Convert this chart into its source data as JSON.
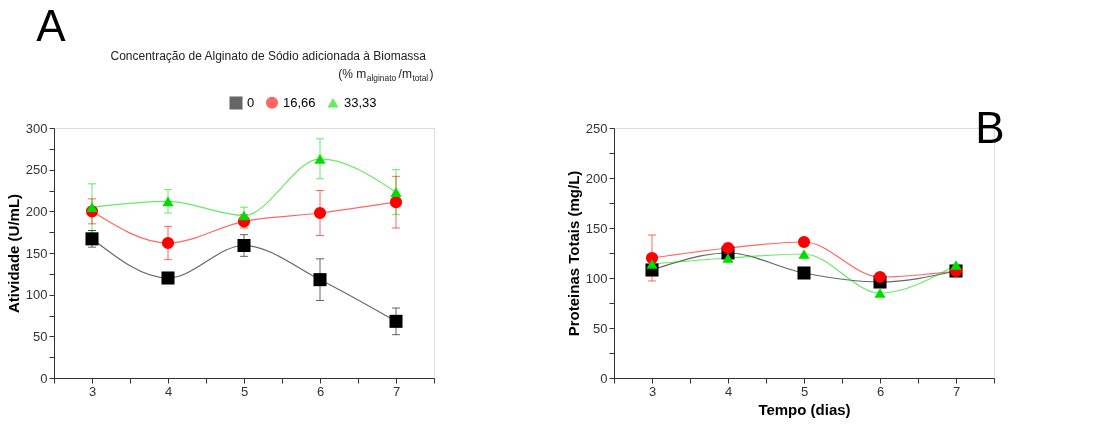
{
  "chart_data": [
    {
      "type": "line",
      "title": "A",
      "ylabel": "Atividade (U/mL)",
      "legend_title": "Concentração de Alginato de Sódio adicionada à Biomassa\n(% m$_{alginato}$/m$_{total}$)",
      "legend": "top right",
      "grid": false,
      "line_style": "solid",
      "x": [
        3,
        4,
        5,
        6,
        7
      ],
      "xlim": [
        2.5,
        7.5
      ],
      "xticks": [
        {
          "value": 2.5,
          "label": null
        },
        3,
        {
          "value": 3.5,
          "label": null
        },
        4,
        {
          "value": 4.5,
          "label": null
        },
        5,
        {
          "value": 5.5,
          "label": null
        },
        6,
        {
          "value": 6.5,
          "label": null
        },
        7,
        {
          "value": 7.5,
          "label": null
        }
      ],
      "ylim": [
        0,
        300
      ],
      "yticks": [
        0,
        {
          "value": 25,
          "label": null
        },
        50,
        {
          "value": 75,
          "label": null
        },
        100,
        {
          "value": 125,
          "label": null
        },
        150,
        {
          "value": 175,
          "label": null
        },
        200,
        {
          "value": 225,
          "label": null
        },
        250,
        {
          "value": 275,
          "label": null
        },
        300
      ],
      "series": [
        {
          "name": "0",
          "color": "#000000",
          "marker": "square",
          "values": [
            167,
            120,
            159,
            118,
            68
          ],
          "errors": [
            10,
            3,
            13,
            25,
            16
          ]
        },
        {
          "name": "16,66",
          "color": "#ff0000",
          "marker": "circle",
          "values": [
            200,
            162,
            188,
            198,
            211
          ],
          "errors": [
            15,
            20,
            8,
            27,
            31
          ]
        },
        {
          "name": "33,33",
          "color": "#00dd00",
          "marker": "triangle",
          "values": [
            205,
            212,
            195,
            263,
            223
          ],
          "errors": [
            28,
            14,
            10,
            24,
            27
          ]
        }
      ]
    },
    {
      "type": "line",
      "title": "B",
      "xlabel": "Tempo (dias)",
      "ylabel": "Proteinas Totais (mg/L)",
      "grid": false,
      "line_style": "solid",
      "x": [
        3,
        4,
        5,
        6,
        7
      ],
      "xlim": [
        2.5,
        7.5
      ],
      "xticks": [
        {
          "value": 2.5,
          "label": null
        },
        3,
        {
          "value": 3.5,
          "label": null
        },
        4,
        {
          "value": 4.5,
          "label": null
        },
        5,
        {
          "value": 5.5,
          "label": null
        },
        6,
        {
          "value": 6.5,
          "label": null
        },
        7,
        {
          "value": 7.5,
          "label": null
        }
      ],
      "ylim": [
        0,
        250
      ],
      "yticks": [
        0,
        {
          "value": 25,
          "label": null
        },
        50,
        {
          "value": 75,
          "label": null
        },
        100,
        {
          "value": 125,
          "label": null
        },
        150,
        {
          "value": 175,
          "label": null
        },
        200,
        {
          "value": 225,
          "label": null
        },
        250
      ],
      "series": [
        {
          "name": "0",
          "color": "#000000",
          "marker": "square",
          "values": [
            108,
            125,
            105,
            96,
            107
          ]
        },
        {
          "name": "16,66",
          "color": "#ff0000",
          "marker": "circle",
          "values": [
            120,
            130,
            136,
            101,
            107
          ],
          "errors": [
            23,
            null,
            null,
            null,
            null
          ]
        },
        {
          "name": "33,33",
          "color": "#00dd00",
          "marker": "triangle",
          "values": [
            114,
            120,
            124,
            85,
            113
          ]
        }
      ]
    }
  ]
}
